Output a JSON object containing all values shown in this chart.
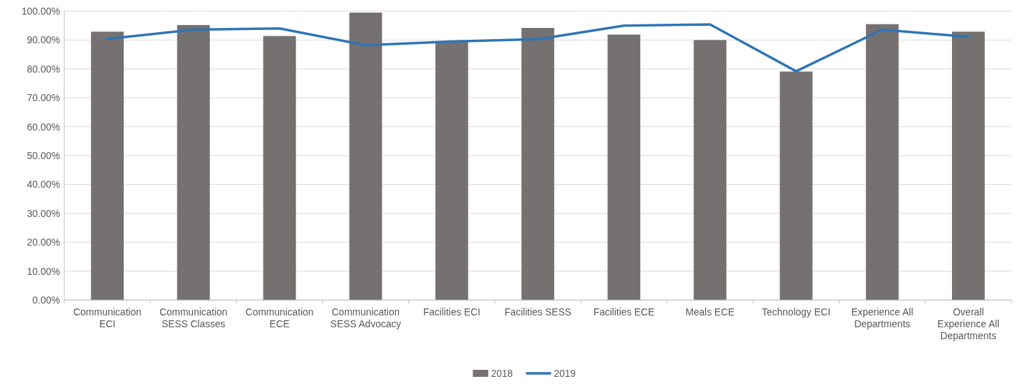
{
  "chart_data": {
    "type": "bar",
    "categories": [
      "Communication ECI",
      "Communication SESS Classes",
      "Communication ECE",
      "Communication SESS Advocacy",
      "Facilities ECI",
      "Facilities SESS",
      "Facilities ECE",
      "Meals ECE",
      "Technology ECI",
      "Experience All Departments",
      "Overall Experience All Departments"
    ],
    "series": [
      {
        "name": "2018",
        "color": "#767171",
        "values": [
          92.9,
          95.2,
          91.4,
          99.5,
          89.5,
          94.2,
          91.9,
          90.0,
          79.1,
          95.5,
          92.9
        ]
      },
      {
        "name": "2019",
        "type": "line",
        "color": "#2e75b6",
        "values": [
          90.4,
          93.6,
          94.0,
          88.2,
          89.5,
          90.3,
          95.0,
          95.4,
          79.2,
          93.6,
          91.1
        ]
      }
    ],
    "ylim": [
      0,
      100
    ],
    "yticks": [
      {
        "value": 0,
        "label": "0.00%"
      },
      {
        "value": 10,
        "label": "10.00%"
      },
      {
        "value": 20,
        "label": "20.00%"
      },
      {
        "value": 30,
        "label": "30.00%"
      },
      {
        "value": 40,
        "label": "40.00%"
      },
      {
        "value": 50,
        "label": "50.00%"
      },
      {
        "value": 60,
        "label": "60.00%"
      },
      {
        "value": 70,
        "label": "70.00%"
      },
      {
        "value": 80,
        "label": "80.00%"
      },
      {
        "value": 90,
        "label": "90.00%"
      },
      {
        "value": 100,
        "label": "100.00%"
      }
    ],
    "grid": "y",
    "legend": "bottom",
    "marker": "none",
    "line_style": "solid"
  }
}
